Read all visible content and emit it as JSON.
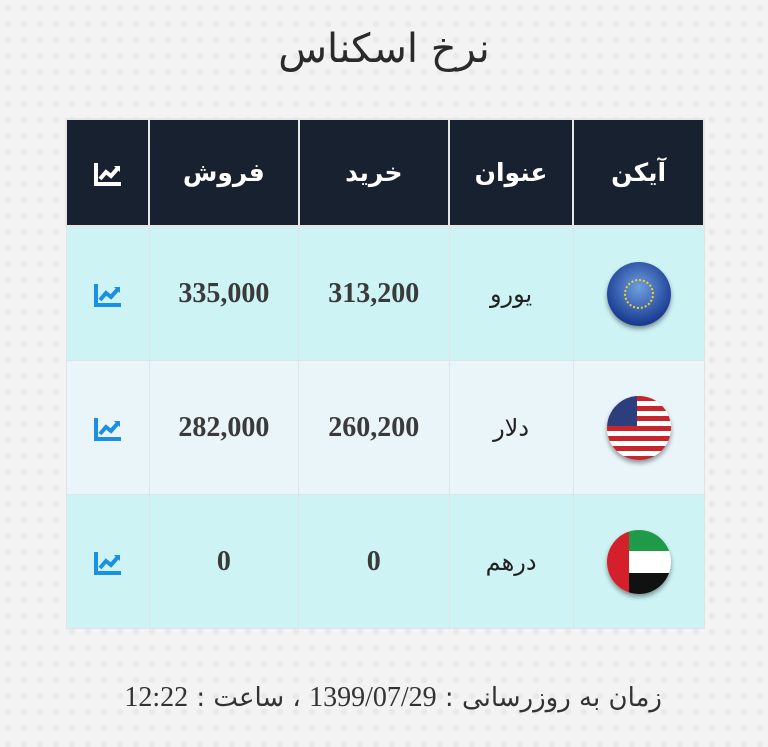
{
  "title": "نرخ اسکناس",
  "table": {
    "headers": {
      "icon": "آیکن",
      "name": "عنوان",
      "buy": "خرید",
      "sell": "فروش",
      "chart": "chart-icon"
    },
    "rows": [
      {
        "flag": "eu-flag-icon",
        "name": "یورو",
        "buy": "313,200",
        "sell": "335,000"
      },
      {
        "flag": "us-flag-icon",
        "name": "دلار",
        "buy": "260,200",
        "sell": "282,000"
      },
      {
        "flag": "uae-flag-icon",
        "name": "درهم",
        "buy": "0",
        "sell": "0"
      }
    ]
  },
  "footer": {
    "label": "زمان به روزرسانی :",
    "date": "1399/07/29",
    "time_label": "، ساعت :",
    "time": "12:22"
  },
  "colors": {
    "header_bg": "#18212f",
    "row_bg": "#cdf3f5",
    "row_alt_bg": "#e9f5f8",
    "chart_icon": "#1a8fe3"
  }
}
